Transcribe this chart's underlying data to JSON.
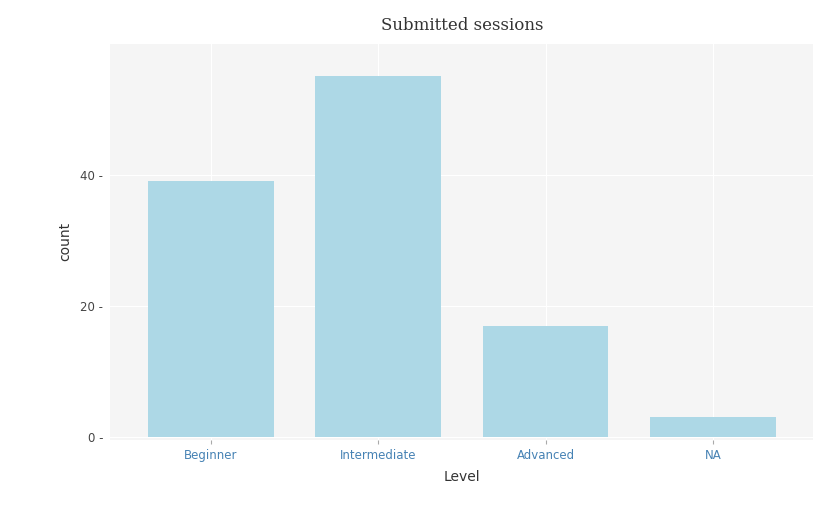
{
  "categories": [
    "Beginner",
    "Intermediate",
    "Advanced",
    "NA"
  ],
  "values": [
    39,
    55,
    17,
    3
  ],
  "bar_color": "#add8e6",
  "title": "Submitted sessions",
  "xlabel": "Level",
  "ylabel": "count",
  "yticks": [
    0,
    20,
    40
  ],
  "ylim": [
    -0.5,
    60
  ],
  "background_color": "#ffffff",
  "panel_background": "#f5f5f5",
  "grid_color": "#ffffff",
  "title_fontsize": 12,
  "axis_label_fontsize": 10,
  "tick_label_fontsize": 8.5,
  "xtick_label_color": "#4682b4",
  "ytick_label_color": "#444444",
  "bar_width": 0.75
}
